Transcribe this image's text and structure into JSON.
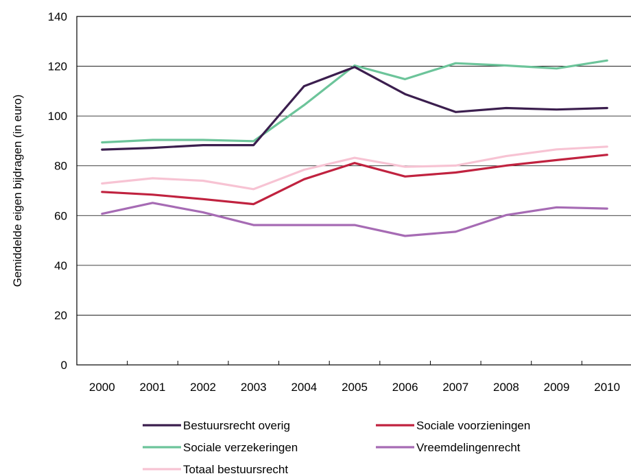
{
  "chart_data": {
    "type": "line",
    "title": "",
    "xlabel": "",
    "ylabel": "Gemiddelde eigen bijdragen (in euro)",
    "x": [
      "2000",
      "2001",
      "2002",
      "2003",
      "2004",
      "2005",
      "2006",
      "2007",
      "2008",
      "2009",
      "2010"
    ],
    "ylim": [
      0,
      140
    ],
    "yticks": [
      "0",
      "20",
      "40",
      "60",
      "80",
      "100",
      "120",
      "140"
    ],
    "grid": "horizontal",
    "legend_position": "bottom",
    "series": [
      {
        "name": "Bestuursrecht overig",
        "color": "#3b1e4e",
        "values": [
          86.5,
          87.2,
          88.3,
          88.3,
          112,
          119.7,
          108.8,
          101.6,
          103.2,
          102.6,
          103.2
        ]
      },
      {
        "name": "Sociale voorzieningen",
        "color": "#c0223f",
        "values": [
          69.5,
          68.4,
          66.6,
          64.6,
          74.6,
          81.1,
          75.7,
          77.3,
          80.1,
          82.3,
          84.4
        ]
      },
      {
        "name": "Sociale verzekeringen",
        "color": "#6cc49a",
        "values": [
          89.4,
          90.4,
          90.4,
          89.9,
          104.4,
          120.3,
          114.8,
          121.2,
          120.3,
          119.1,
          122.3
        ]
      },
      {
        "name": "Vreemdelingenrecht",
        "color": "#a66bb4",
        "values": [
          60.7,
          65.1,
          61.3,
          56.2,
          56.2,
          56.2,
          51.8,
          53.5,
          60.2,
          63.3,
          62.8
        ]
      },
      {
        "name": "Totaal bestuursrecht",
        "color": "#f7c3d3",
        "values": [
          72.9,
          75.0,
          74.0,
          70.6,
          78.4,
          83.2,
          79.6,
          80.1,
          83.9,
          86.6,
          87.7
        ]
      }
    ]
  }
}
